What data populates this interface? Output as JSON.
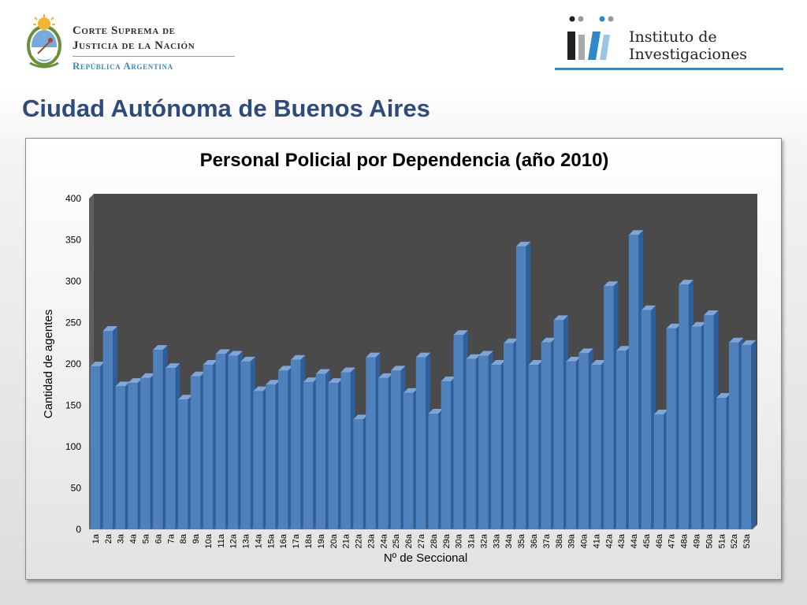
{
  "header": {
    "court_line1": "Corte Suprema de",
    "court_line2": "Justicia de la Nación",
    "court_line3": "República Argentina",
    "institute_line1": "Instituto de",
    "institute_line2": "Investigaciones",
    "accent_color": "#2f88c8"
  },
  "slide": {
    "title": "Ciudad Autónoma de Buenos Aires"
  },
  "chart_data": {
    "type": "bar",
    "title": "Personal Policial por Dependencia (año 2010)",
    "xlabel": "Nº de Seccional",
    "ylabel": "Cantidad de agentes",
    "ylim": [
      0,
      400
    ],
    "yticks": [
      0,
      50,
      100,
      150,
      200,
      250,
      300,
      350,
      400
    ],
    "grid": false,
    "legend": "none",
    "bar_color": "#4f81bd",
    "plot_background": "#4a4a4a",
    "categories": [
      "1a",
      "2a",
      "3a",
      "4a",
      "5a",
      "6a",
      "7a",
      "8a",
      "9a",
      "10a",
      "11a",
      "12a",
      "13a",
      "14a",
      "15a",
      "16a",
      "17a",
      "18a",
      "19a",
      "20a",
      "21a",
      "22a",
      "23a",
      "24a",
      "25a",
      "26a",
      "27a",
      "28a",
      "29a",
      "30a",
      "31a",
      "32a",
      "33a",
      "34a",
      "35a",
      "36a",
      "37a",
      "38a",
      "39a",
      "40a",
      "41a",
      "42a",
      "43a",
      "44a",
      "45a",
      "46a",
      "47a",
      "48a",
      "49a",
      "50a",
      "51a",
      "52a",
      "53a"
    ],
    "values": [
      197,
      240,
      173,
      177,
      183,
      217,
      195,
      157,
      185,
      199,
      212,
      210,
      203,
      167,
      175,
      192,
      205,
      178,
      188,
      177,
      190,
      133,
      208,
      183,
      192,
      165,
      208,
      140,
      179,
      235,
      206,
      210,
      199,
      225,
      342,
      199,
      226,
      253,
      203,
      213,
      199,
      294,
      216,
      356,
      265,
      139,
      243,
      296,
      245,
      259,
      159,
      226,
      223
    ]
  }
}
